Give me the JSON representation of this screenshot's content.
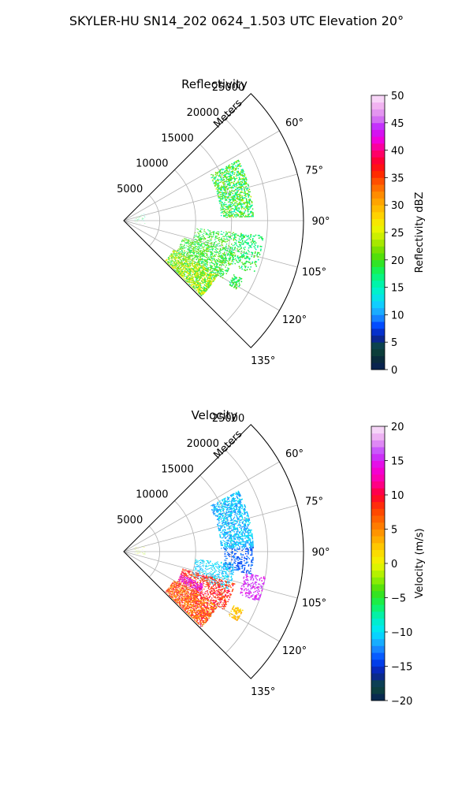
{
  "suptitle": "SKYLER-HU  SN14_202  0624_1.503 UTC Elevation 20°",
  "chart_data": [
    {
      "type": "heatmap",
      "title": "Reflectivity",
      "radial_axis_label": "Meters",
      "radial_ticks": [
        "5000",
        "10000",
        "15000",
        "20000",
        "25000"
      ],
      "radial_tick_values": [
        5000,
        10000,
        15000,
        20000,
        25000
      ],
      "rmax": 25000,
      "azimuth_range_deg": [
        45,
        135
      ],
      "azimuth_ticks": [
        "60°",
        "75°",
        "90°",
        "105°",
        "120°",
        "135°"
      ],
      "azimuth_tick_values": [
        60,
        75,
        90,
        105,
        120,
        135
      ],
      "grid": true,
      "colorbar": {
        "label": "Reflectivity dBZ",
        "min": 0,
        "max": 50,
        "ticks": [
          "0",
          "5",
          "10",
          "15",
          "20",
          "25",
          "30",
          "35",
          "40",
          "45",
          "50"
        ],
        "tick_values": [
          0,
          5,
          10,
          15,
          20,
          25,
          30,
          35,
          40,
          45,
          50
        ]
      },
      "echo_regions": [
        {
          "az": [
            62,
            88
          ],
          "range_m": [
            13500,
            18000
          ],
          "value_min": 14,
          "value_max": 24,
          "cover": 0.55
        },
        {
          "az": [
            96,
            106
          ],
          "range_m": [
            10000,
            15500
          ],
          "value_min": 16,
          "value_max": 22,
          "cover": 0.35
        },
        {
          "az": [
            106,
            120
          ],
          "range_m": [
            8500,
            16000
          ],
          "value_min": 16,
          "value_max": 23,
          "cover": 0.5
        },
        {
          "az": [
            120,
            134
          ],
          "range_m": [
            8000,
            15000
          ],
          "value_min": 17,
          "value_max": 28,
          "cover": 0.75
        },
        {
          "az": [
            96,
            112
          ],
          "range_m": [
            15500,
            19500
          ],
          "value_min": 15,
          "value_max": 21,
          "cover": 0.3
        },
        {
          "az": [
            116,
            121
          ],
          "range_m": [
            17000,
            18500
          ],
          "value_min": 16,
          "value_max": 21,
          "cover": 0.6
        },
        {
          "az": [
            70,
            100
          ],
          "range_m": [
            1500,
            3000
          ],
          "value_min": 14,
          "value_max": 20,
          "cover": 0.06
        }
      ]
    },
    {
      "type": "heatmap",
      "title": "Velocity",
      "radial_axis_label": "Meters",
      "radial_ticks": [
        "5000",
        "10000",
        "15000",
        "20000",
        "25000"
      ],
      "radial_tick_values": [
        5000,
        10000,
        15000,
        20000,
        25000
      ],
      "rmax": 25000,
      "azimuth_range_deg": [
        45,
        135
      ],
      "azimuth_ticks": [
        "60°",
        "75°",
        "90°",
        "105°",
        "120°",
        "135°"
      ],
      "azimuth_tick_values": [
        60,
        75,
        90,
        105,
        120,
        135
      ],
      "grid": true,
      "colorbar": {
        "label": "Velocity (m/s)",
        "min": -20,
        "max": 20,
        "ticks": [
          "−20",
          "−15",
          "−10",
          "−5",
          "0",
          "5",
          "10",
          "15",
          "20"
        ],
        "tick_values": [
          -20,
          -15,
          -10,
          -5,
          0,
          5,
          10,
          15,
          20
        ]
      },
      "echo_regions": [
        {
          "az": [
            62,
            88
          ],
          "range_m": [
            13500,
            18000
          ],
          "value_min": -13,
          "value_max": -9,
          "cover": 0.55
        },
        {
          "az": [
            88,
            100
          ],
          "range_m": [
            14000,
            18000
          ],
          "value_min": -15,
          "value_max": -12,
          "cover": 0.35
        },
        {
          "az": [
            96,
            110
          ],
          "range_m": [
            10000,
            15500
          ],
          "value_min": -12,
          "value_max": -9,
          "cover": 0.35
        },
        {
          "az": [
            106,
            120
          ],
          "range_m": [
            8500,
            16000
          ],
          "value_min": 6,
          "value_max": 11,
          "cover": 0.5
        },
        {
          "az": [
            120,
            134
          ],
          "range_m": [
            8000,
            15000
          ],
          "value_min": 3,
          "value_max": 11,
          "cover": 0.75
        },
        {
          "az": [
            112,
            118
          ],
          "range_m": [
            8500,
            12000
          ],
          "value_min": 13,
          "value_max": 16,
          "cover": 0.55
        },
        {
          "az": [
            100,
            110
          ],
          "range_m": [
            17000,
            20000
          ],
          "value_min": 14,
          "value_max": 17,
          "cover": 0.35
        },
        {
          "az": [
            116,
            121
          ],
          "range_m": [
            17000,
            18500
          ],
          "value_min": 1,
          "value_max": 4,
          "cover": 0.6
        },
        {
          "az": [
            70,
            100
          ],
          "range_m": [
            1500,
            3000
          ],
          "value_min": -3,
          "value_max": 1,
          "cover": 0.06
        }
      ]
    }
  ]
}
